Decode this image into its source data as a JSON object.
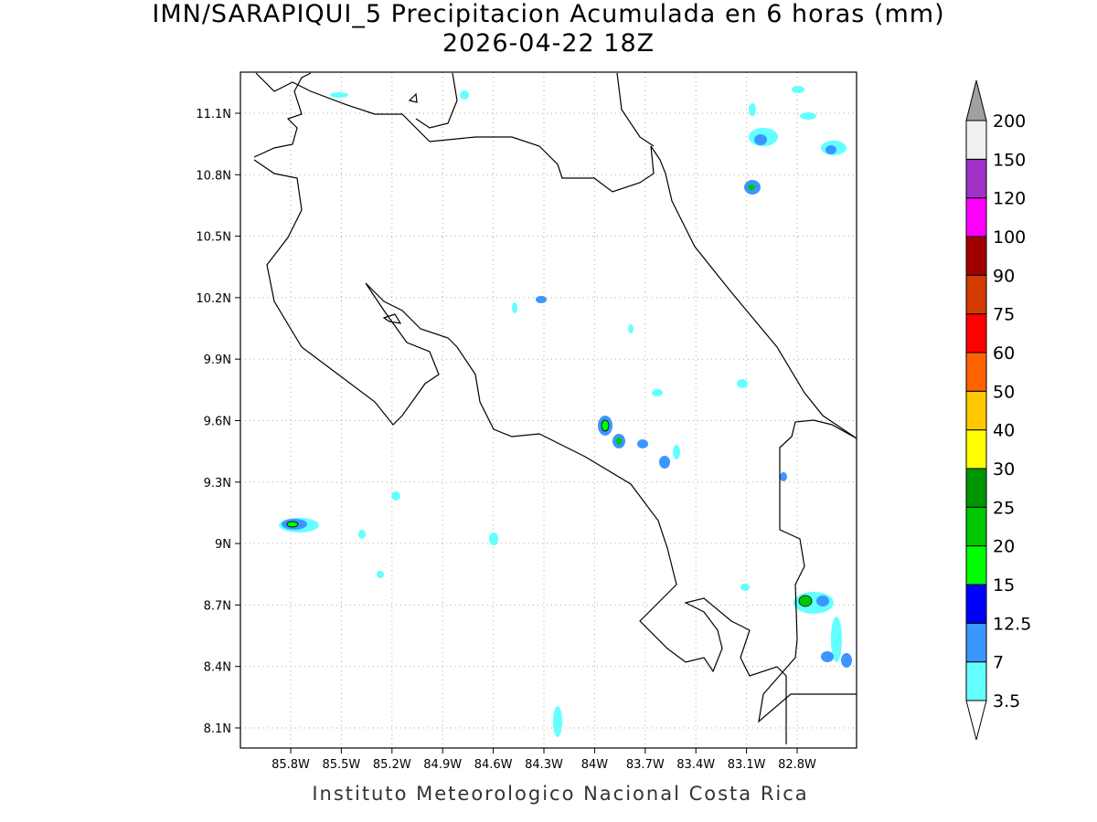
{
  "title": "IMN/SARAPIQUI_5 Precipitacion Acumulada en 6 horas (mm)",
  "subtitle": "2026-04-22 18Z",
  "lon_ticks": [
    "85.8W",
    "85.5W",
    "85.2W",
    "84.9W",
    "84.6W",
    "84.3W",
    "84W",
    "83.7W",
    "83.4W",
    "83.1W",
    "82.8W"
  ],
  "lat_ticks": [
    "11.1N",
    "10.8N",
    "10.5N",
    "10.2N",
    "9.9N",
    "9.6N",
    "9.3N",
    "9N",
    "8.7N",
    "8.4N",
    "8.1N"
  ],
  "colorbar": {
    "levels": [
      "3.5",
      "7",
      "12.5",
      "15",
      "20",
      "25",
      "30",
      "40",
      "50",
      "60",
      "75",
      "90",
      "100",
      "120",
      "150",
      "200"
    ],
    "colors": [
      "#ffffff",
      "#64ffff",
      "#3c96ff",
      "#0000ff",
      "#00ff00",
      "#00c800",
      "#009600",
      "#ffff00",
      "#ffc800",
      "#ff6400",
      "#ff0000",
      "#d23c00",
      "#a00000",
      "#ff00ff",
      "#a032c8",
      "#f0f0f0",
      "#a0a0a0"
    ]
  },
  "footer": "Instituto Meteorologico Nacional Costa Rica"
}
